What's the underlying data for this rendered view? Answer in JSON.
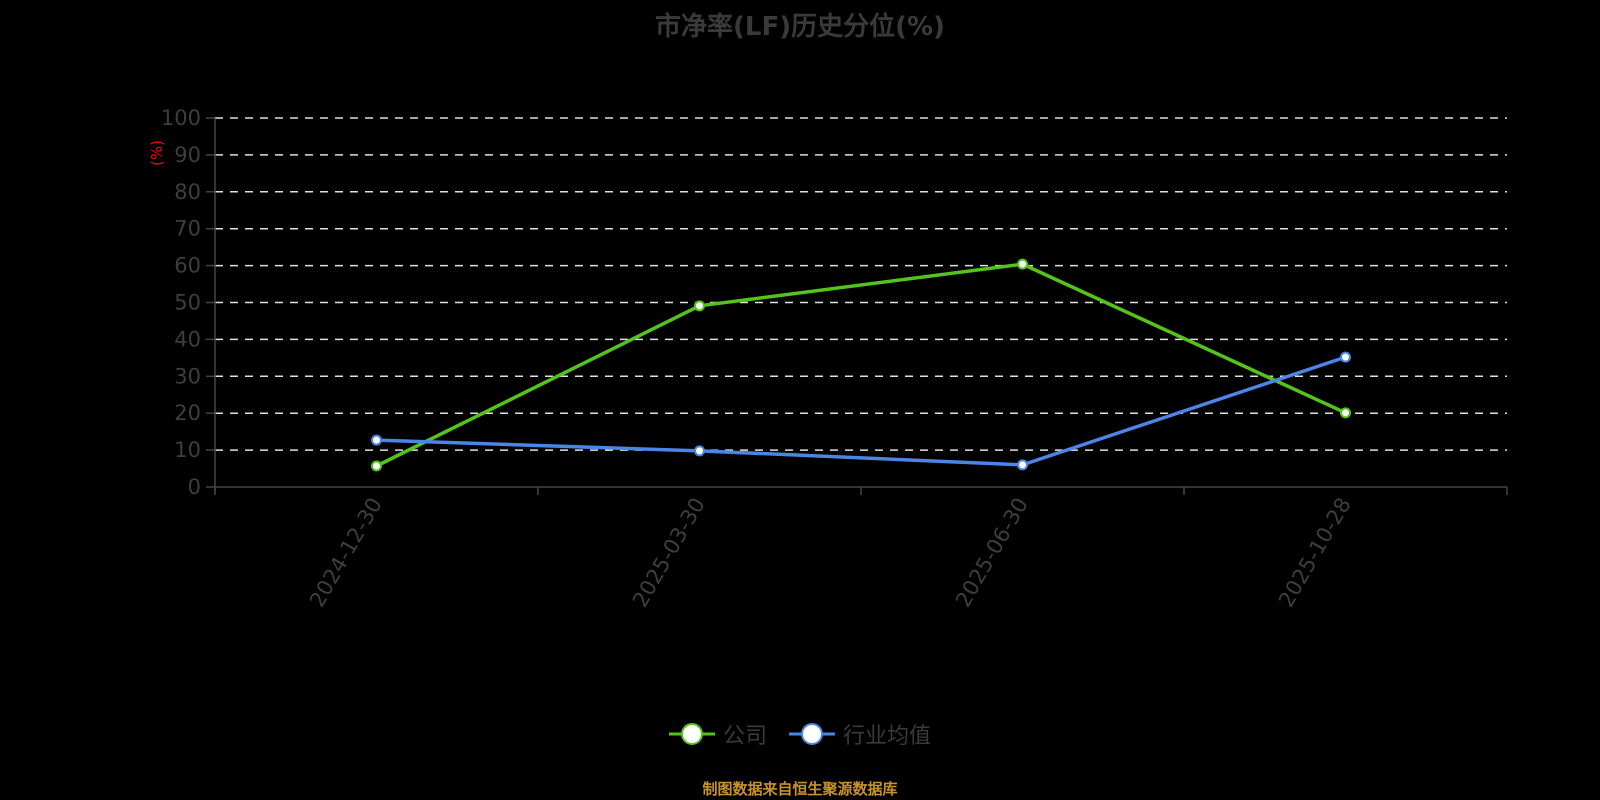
{
  "title": "市净率(LF)历史分位(%)",
  "footer": "制图数据来自恒生聚源数据库",
  "legend": [
    {
      "label": "公司",
      "color": "#52c41a"
    },
    {
      "label": "行业均值",
      "color": "#4a86e8"
    }
  ],
  "y_unit": "(%)",
  "chart_data": {
    "type": "line",
    "title": "市净率(LF)历史分位(%)",
    "xlabel": "",
    "ylabel": "(%)",
    "categories": [
      "2024-12-30",
      "2025-03-30",
      "2025-06-30",
      "2025-10-28"
    ],
    "series": [
      {
        "name": "公司",
        "color": "#52c41a",
        "values": [
          5.7,
          49.1,
          60.4,
          20.1
        ]
      },
      {
        "name": "行业均值",
        "color": "#4a86e8",
        "values": [
          12.7,
          9.8,
          6.0,
          35.2
        ]
      }
    ],
    "ylim": [
      0,
      100
    ],
    "yticks": [
      0,
      10,
      20,
      30,
      40,
      50,
      60,
      70,
      80,
      90,
      100
    ],
    "grid": true,
    "legend_position": "bottom"
  }
}
